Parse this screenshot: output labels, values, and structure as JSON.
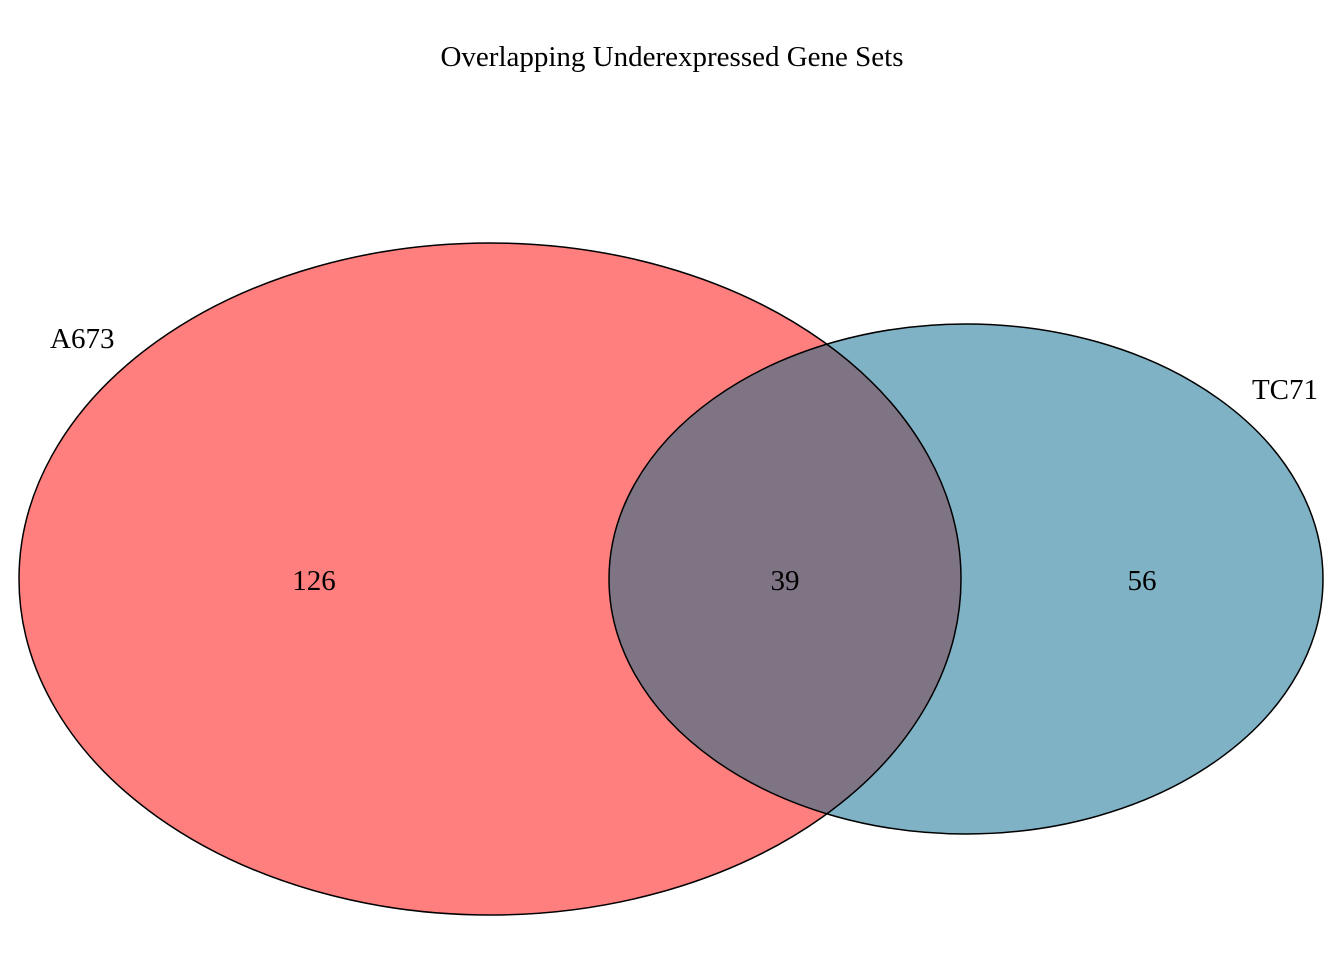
{
  "title": "Overlapping Underexpressed Gene Sets",
  "sets": [
    {
      "name": "A673",
      "color": "#FF7F7F"
    },
    {
      "name": "TC71",
      "color": "#7FB2C5"
    }
  ],
  "overlap_color": "#7F7484",
  "counts": {
    "a673_only": "126",
    "intersection": "39",
    "tc71_only": "56"
  }
}
